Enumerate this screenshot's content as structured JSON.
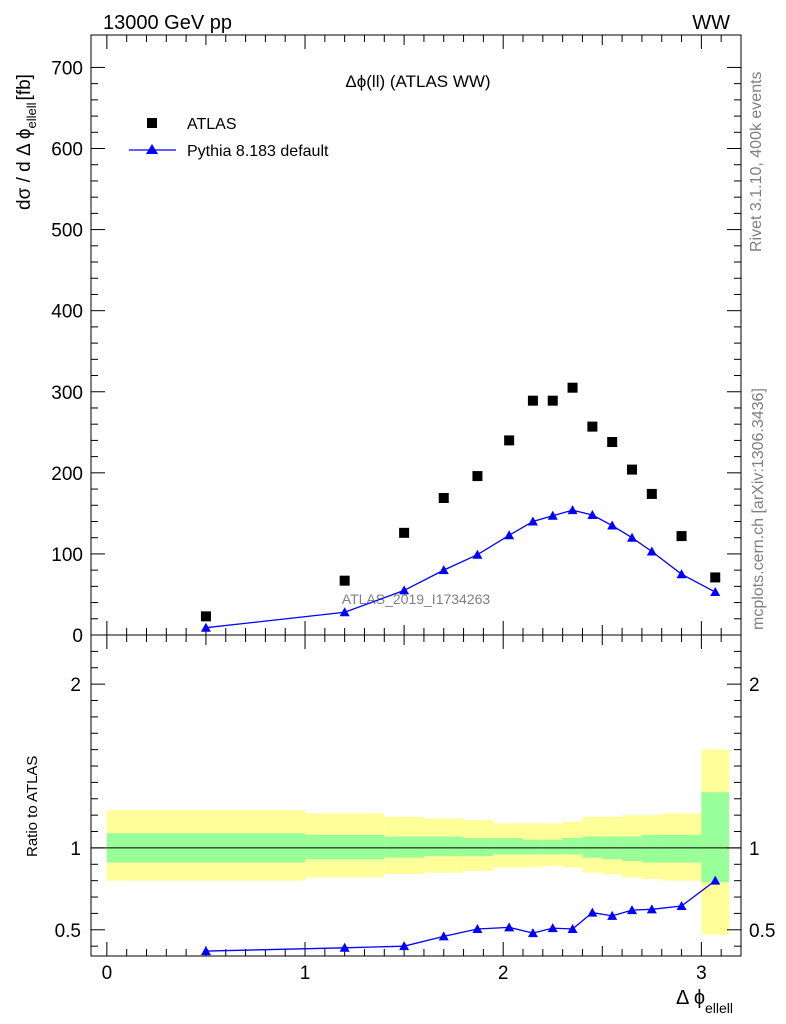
{
  "header": {
    "left": "13000 GeV pp",
    "right": "WW"
  },
  "side_labels": {
    "rivet": "Rivet 3.1.10,  400k events",
    "mcplots": "mcplots.cern.ch [arXiv:1306.3436]"
  },
  "watermark": "ATLAS_2019_I1734263",
  "chart_data": [
    {
      "type": "scatter",
      "panel": "main",
      "title": "Δϕ(ll) (ATLAS WW)",
      "ylabel": "dσ / d Δ ϕ",
      "ylabel_sub": "ellell",
      "ylabel_unit": "[fb]",
      "ylim": [
        0,
        740
      ],
      "yticks": [
        0,
        100,
        200,
        300,
        400,
        500,
        600,
        700
      ],
      "legend_position": "top-left",
      "series": [
        {
          "name": "ATLAS",
          "marker": "square",
          "color": "#000000",
          "x": [
            0.5,
            1.2,
            1.5,
            1.7,
            1.87,
            2.03,
            2.15,
            2.25,
            2.35,
            2.45,
            2.55,
            2.65,
            2.75,
            2.9,
            3.07
          ],
          "y": [
            23,
            67,
            126,
            169,
            196,
            240,
            289,
            289,
            305,
            257,
            238,
            204,
            174,
            122,
            71
          ]
        },
        {
          "name": "Pythia 8.183 default",
          "marker": "triangle",
          "color": "#0000ff",
          "x": [
            0.5,
            1.2,
            1.5,
            1.7,
            1.87,
            2.03,
            2.15,
            2.25,
            2.35,
            2.45,
            2.55,
            2.65,
            2.75,
            2.9,
            3.07
          ],
          "y": [
            9,
            28,
            55,
            80,
            99,
            123,
            140,
            147,
            154,
            148,
            135,
            120,
            103,
            75,
            53
          ]
        }
      ]
    },
    {
      "type": "line",
      "panel": "ratio",
      "ylabel": "Ratio to ATLAS",
      "xlabel": "Δ ϕ",
      "xlabel_sub": "ellell",
      "xlim": [
        -0.08,
        3.2
      ],
      "ylim": [
        0.34,
        2.3
      ],
      "yticks": [
        0.5,
        1,
        2
      ],
      "ytick_labels": [
        "0.5",
        "1",
        "2"
      ],
      "xticks": [
        0,
        1,
        2,
        3
      ],
      "xtick_labels": [
        "0",
        "1",
        "2",
        "3"
      ],
      "reference_line": 1,
      "bin_edges": [
        0,
        1,
        1.4,
        1.6,
        1.8,
        1.95,
        2.1,
        2.2,
        2.3,
        2.4,
        2.5,
        2.6,
        2.7,
        2.8,
        3.0,
        3.14
      ],
      "band_inner_color": "#99ff99",
      "band_outer_color": "#ffff99",
      "inner_band": [
        [
          0.91,
          1.09
        ],
        [
          0.93,
          1.08
        ],
        [
          0.94,
          1.07
        ],
        [
          0.95,
          1.07
        ],
        [
          0.95,
          1.06
        ],
        [
          0.96,
          1.06
        ],
        [
          0.96,
          1.05
        ],
        [
          0.96,
          1.05
        ],
        [
          0.96,
          1.06
        ],
        [
          0.94,
          1.07
        ],
        [
          0.93,
          1.07
        ],
        [
          0.92,
          1.07
        ],
        [
          0.91,
          1.08
        ],
        [
          0.91,
          1.08
        ],
        [
          0.79,
          1.34
        ]
      ],
      "outer_band": [
        [
          0.8,
          1.23
        ],
        [
          0.82,
          1.21
        ],
        [
          0.84,
          1.19
        ],
        [
          0.85,
          1.18
        ],
        [
          0.86,
          1.17
        ],
        [
          0.88,
          1.15
        ],
        [
          0.88,
          1.15
        ],
        [
          0.89,
          1.15
        ],
        [
          0.88,
          1.16
        ],
        [
          0.85,
          1.19
        ],
        [
          0.84,
          1.19
        ],
        [
          0.82,
          1.2
        ],
        [
          0.81,
          1.2
        ],
        [
          0.8,
          1.21
        ],
        [
          0.47,
          1.6
        ]
      ],
      "series": [
        {
          "name": "Pythia 8.183 default",
          "color": "#0000ff",
          "x": [
            0.5,
            1.2,
            1.5,
            1.7,
            1.87,
            2.03,
            2.15,
            2.25,
            2.35,
            2.45,
            2.55,
            2.65,
            2.75,
            2.9,
            3.07
          ],
          "y": [
            0.37,
            0.39,
            0.4,
            0.46,
            0.505,
            0.515,
            0.48,
            0.51,
            0.505,
            0.605,
            0.585,
            0.62,
            0.625,
            0.645,
            0.8
          ],
          "yerr": [
            0.012,
            0.012,
            0.012,
            0.01,
            0.01,
            0.01,
            0.01,
            0.01,
            0.01,
            0.012,
            0.012,
            0.014,
            0.015,
            0.015,
            0.022
          ]
        }
      ]
    }
  ]
}
